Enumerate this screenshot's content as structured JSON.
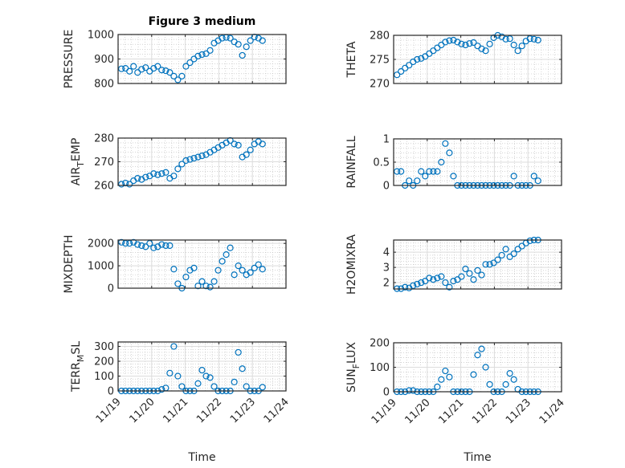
{
  "figure_title": "Figure 3 medium",
  "marker_color": "#0072BD",
  "chart_data": [
    {
      "id": "pressure",
      "type": "scatter",
      "title": "Figure 3 medium",
      "ylabel_parts": [
        "PRESSURE"
      ],
      "xlabel": "",
      "ylim": [
        800,
        1000
      ],
      "yticks": [
        800,
        900,
        1000
      ],
      "ytick_labels": [
        "800",
        "900",
        "1000"
      ],
      "y": [
        860,
        862,
        850,
        870,
        845,
        858,
        865,
        850,
        862,
        870,
        855,
        852,
        845,
        830,
        815,
        830,
        870,
        885,
        900,
        912,
        918,
        922,
        935,
        965,
        975,
        985,
        988,
        985,
        970,
        960,
        915,
        950,
        975,
        990,
        985,
        975
      ]
    },
    {
      "id": "theta",
      "type": "scatter",
      "ylabel_parts": [
        "THETA"
      ],
      "xlabel": "",
      "ylim": [
        270,
        280
      ],
      "yticks": [
        270,
        275,
        280
      ],
      "ytick_labels": [
        "270",
        "275",
        "280"
      ],
      "y": [
        271.8,
        272.5,
        273.2,
        273.8,
        274.5,
        275,
        275.2,
        275.6,
        276.2,
        276.8,
        277.4,
        278,
        278.6,
        278.9,
        279,
        278.6,
        278.2,
        278,
        278.3,
        278.5,
        277.8,
        277.2,
        276.8,
        278.2,
        279.5,
        280,
        279.7,
        279.2,
        279.3,
        278,
        276.8,
        277.8,
        278.8,
        279.3,
        279.2,
        279
      ]
    },
    {
      "id": "air_temp",
      "type": "scatter",
      "ylabel_parts": [
        "AIR",
        "T",
        "EMP"
      ],
      "xlabel": "",
      "ylim": [
        260,
        280
      ],
      "yticks": [
        260,
        270,
        280
      ],
      "ytick_labels": [
        "260",
        "270",
        "280"
      ],
      "y": [
        260.5,
        261,
        260.5,
        262,
        263,
        262.5,
        263.5,
        264,
        265,
        264.5,
        265,
        265.5,
        263,
        264,
        267,
        269,
        270.5,
        271,
        271.5,
        272,
        272.5,
        273,
        274,
        275,
        276,
        277,
        278,
        279,
        277.5,
        277,
        272,
        273,
        275,
        277.5,
        278.5,
        277.5
      ]
    },
    {
      "id": "rainfall",
      "type": "scatter",
      "ylabel_parts": [
        "RAINFALL"
      ],
      "xlabel": "",
      "ylim": [
        0,
        1
      ],
      "yticks": [
        0,
        0.5,
        1
      ],
      "ytick_labels": [
        "0",
        "0.5",
        "1"
      ],
      "y": [
        0.3,
        0.3,
        0,
        0.1,
        0,
        0.1,
        0.3,
        0.2,
        0.3,
        0.3,
        0.3,
        0.5,
        0.9,
        0.7,
        0.2,
        0,
        0,
        0,
        0,
        0,
        0,
        0,
        0,
        0,
        0,
        0,
        0,
        0,
        0,
        0.2,
        0,
        0,
        0,
        0,
        0.2,
        0.1
      ]
    },
    {
      "id": "mixdepth",
      "type": "scatter",
      "ylabel_parts": [
        "MIXDEPTH"
      ],
      "xlabel": "",
      "ylim": [
        0,
        2150
      ],
      "yticks": [
        0,
        1000,
        2000
      ],
      "ytick_labels": [
        "0",
        "1000",
        "2000"
      ],
      "y": [
        2050,
        2000,
        2000,
        2050,
        1950,
        1900,
        1850,
        2000,
        1800,
        1850,
        1950,
        1900,
        1900,
        850,
        200,
        0,
        500,
        800,
        900,
        100,
        300,
        100,
        50,
        300,
        800,
        1200,
        1500,
        1800,
        600,
        1000,
        800,
        600,
        700,
        900,
        1050,
        850
      ]
    },
    {
      "id": "h2omixra",
      "type": "scatter",
      "ylabel_parts": [
        "H2OMIXRA"
      ],
      "xlabel": "",
      "ylim": [
        1.58,
        4.8
      ],
      "yticks": [
        2,
        3,
        4
      ],
      "ytick_labels": [
        "2",
        "3",
        "4"
      ],
      "y": [
        1.6,
        1.6,
        1.7,
        1.65,
        1.8,
        1.9,
        2.0,
        2.1,
        2.3,
        2.2,
        2.3,
        2.4,
        2.0,
        1.7,
        2.1,
        2.2,
        2.4,
        2.9,
        2.6,
        2.2,
        2.8,
        2.5,
        3.2,
        3.2,
        3.3,
        3.5,
        3.8,
        4.2,
        3.7,
        3.9,
        4.2,
        4.4,
        4.6,
        4.75,
        4.8,
        4.8
      ]
    },
    {
      "id": "terr_msl",
      "type": "scatter",
      "ylabel_parts": [
        "TERR",
        "M",
        "SL"
      ],
      "xlabel": "Time",
      "ylim": [
        0,
        330
      ],
      "yticks": [
        0,
        100,
        200,
        300
      ],
      "ytick_labels": [
        "0",
        "100",
        "200",
        "300"
      ],
      "y": [
        0,
        0,
        0,
        0,
        0,
        0,
        0,
        0,
        0,
        0,
        10,
        20,
        120,
        300,
        100,
        30,
        0,
        0,
        0,
        50,
        140,
        100,
        90,
        30,
        0,
        0,
        0,
        0,
        60,
        260,
        150,
        30,
        0,
        0,
        0,
        25
      ]
    },
    {
      "id": "sun_flux",
      "type": "scatter",
      "ylabel_parts": [
        "SUN",
        "F",
        "LUX"
      ],
      "xlabel": "Time",
      "ylim": [
        0,
        200
      ],
      "yticks": [
        0,
        100,
        200
      ],
      "ytick_labels": [
        "0",
        "100",
        "200"
      ],
      "y": [
        0,
        0,
        0,
        5,
        5,
        0,
        0,
        0,
        0,
        0,
        20,
        50,
        85,
        60,
        0,
        0,
        0,
        0,
        0,
        70,
        150,
        175,
        100,
        30,
        0,
        0,
        0,
        30,
        75,
        50,
        10,
        0,
        0,
        0,
        0,
        0
      ]
    }
  ],
  "x_days_since_11_19": [
    0.1,
    0.22,
    0.34,
    0.46,
    0.58,
    0.7,
    0.82,
    0.94,
    1.06,
    1.18,
    1.3,
    1.42,
    1.54,
    1.66,
    1.78,
    1.9,
    2.02,
    2.14,
    2.26,
    2.38,
    2.5,
    2.62,
    2.74,
    2.86,
    2.98,
    3.1,
    3.22,
    3.34,
    3.46,
    3.58,
    3.7,
    3.82,
    3.94,
    4.06,
    4.18,
    4.3
  ],
  "xlim_days": [
    0,
    5
  ],
  "xtick_labels": [
    "11/19",
    "11/20",
    "11/21",
    "11/22",
    "11/23",
    "11/24"
  ],
  "grid": "major+minor"
}
